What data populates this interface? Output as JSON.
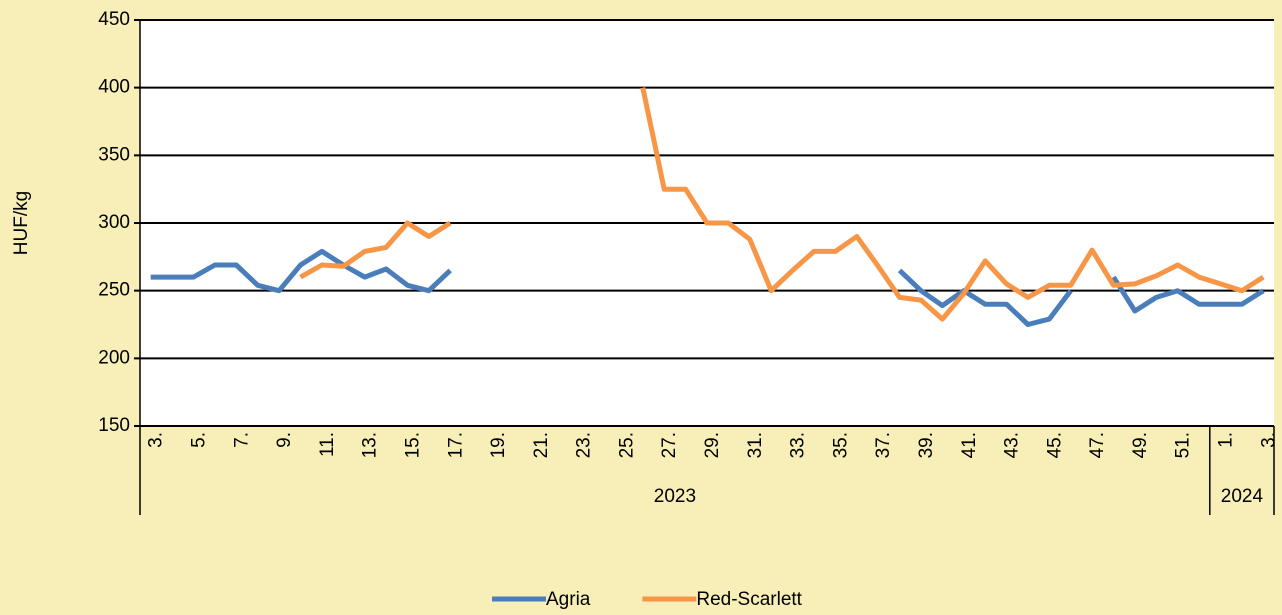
{
  "chart_data": {
    "type": "line",
    "y_axis_label": "HUF/kg",
    "categories": [
      "3.",
      null,
      "5.",
      null,
      "7.",
      null,
      "9.",
      null,
      "11.",
      null,
      "13.",
      null,
      "15.",
      null,
      "17.",
      null,
      "19.",
      null,
      "21.",
      null,
      "23.",
      null,
      "25.",
      null,
      "27.",
      null,
      "29.",
      null,
      "31.",
      null,
      "33.",
      null,
      "35.",
      null,
      "37.",
      null,
      "39.",
      null,
      "41.",
      null,
      "43.",
      null,
      "45.",
      null,
      "47.",
      null,
      "49.",
      null,
      "51.",
      null,
      "1.",
      null,
      "3."
    ],
    "year_groups": [
      {
        "label": "2023",
        "start": 0,
        "end": 49
      },
      {
        "label": "2024",
        "start": 50,
        "end": 52
      }
    ],
    "series": [
      {
        "name": "Agria",
        "color": "#4a7ebb",
        "values": [
          260,
          260,
          260,
          269,
          269,
          254,
          250,
          269,
          279,
          269,
          260,
          266,
          254,
          250,
          265,
          null,
          null,
          null,
          null,
          null,
          null,
          null,
          null,
          null,
          null,
          null,
          null,
          null,
          null,
          null,
          null,
          null,
          null,
          null,
          null,
          265,
          250,
          239,
          250,
          240,
          240,
          225,
          229,
          250,
          null,
          260,
          235,
          245,
          250,
          240,
          240,
          240,
          250
        ]
      },
      {
        "name": "Red-Scarlett",
        "color": "#f79646",
        "values": [
          null,
          null,
          null,
          null,
          null,
          null,
          null,
          260,
          269,
          268,
          279,
          282,
          300,
          290,
          300,
          null,
          null,
          null,
          null,
          null,
          null,
          null,
          null,
          400,
          325,
          325,
          300,
          300,
          288,
          250,
          265,
          279,
          279,
          290,
          268,
          245,
          243,
          229,
          248,
          272,
          255,
          245,
          254,
          254,
          280,
          254,
          255,
          261,
          269,
          260,
          255,
          250,
          260
        ]
      }
    ],
    "ylim": [
      150,
      450
    ],
    "yticks": [
      150,
      200,
      250,
      300,
      350,
      400,
      450
    ],
    "grid": true,
    "legend": "bottom"
  }
}
